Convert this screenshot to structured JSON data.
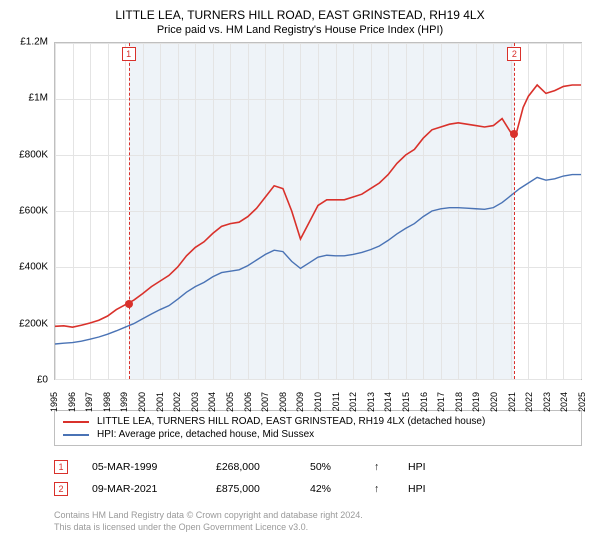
{
  "title": {
    "line1": "LITTLE LEA, TURNERS HILL ROAD, EAST GRINSTEAD, RH19 4LX",
    "line2": "Price paid vs. HM Land Registry's House Price Index (HPI)"
  },
  "chart": {
    "type": "line",
    "background_color": "#ffffff",
    "plot_border_color": "#bfbfbf",
    "grid_color": "#e4e4e4",
    "shade_color": "#eef3f8",
    "y": {
      "min": 0,
      "max": 1200000,
      "step": 200000,
      "labels": [
        "£0",
        "£200K",
        "£400K",
        "£600K",
        "£800K",
        "£1M",
        "£1.2M"
      ],
      "fontsize": 10
    },
    "x": {
      "min": 1995,
      "max": 2025,
      "step": 1,
      "labels": [
        "1995",
        "1996",
        "1997",
        "1998",
        "1999",
        "2000",
        "2001",
        "2002",
        "2003",
        "2004",
        "2005",
        "2006",
        "2007",
        "2008",
        "2009",
        "2010",
        "2011",
        "2012",
        "2013",
        "2014",
        "2015",
        "2016",
        "2017",
        "2018",
        "2019",
        "2020",
        "2021",
        "2022",
        "2023",
        "2024",
        "2025"
      ],
      "fontsize": 9,
      "rotation": -90
    },
    "shade_span": {
      "start_year": 1999.2,
      "end_year": 2021.2
    },
    "series": [
      {
        "name": "price_paid",
        "color": "#d9312b",
        "line_width": 1.6,
        "points": [
          [
            1995.0,
            188000
          ],
          [
            1995.5,
            190000
          ],
          [
            1996.0,
            185000
          ],
          [
            1996.5,
            192000
          ],
          [
            1997.0,
            200000
          ],
          [
            1997.5,
            210000
          ],
          [
            1998.0,
            225000
          ],
          [
            1998.5,
            248000
          ],
          [
            1999.0,
            265000
          ],
          [
            1999.5,
            282000
          ],
          [
            2000.0,
            305000
          ],
          [
            2000.5,
            330000
          ],
          [
            2001.0,
            350000
          ],
          [
            2001.5,
            370000
          ],
          [
            2002.0,
            400000
          ],
          [
            2002.5,
            440000
          ],
          [
            2003.0,
            470000
          ],
          [
            2003.5,
            490000
          ],
          [
            2004.0,
            520000
          ],
          [
            2004.5,
            545000
          ],
          [
            2005.0,
            555000
          ],
          [
            2005.5,
            560000
          ],
          [
            2006.0,
            580000
          ],
          [
            2006.5,
            610000
          ],
          [
            2007.0,
            650000
          ],
          [
            2007.5,
            690000
          ],
          [
            2008.0,
            680000
          ],
          [
            2008.5,
            600000
          ],
          [
            2009.0,
            500000
          ],
          [
            2009.5,
            560000
          ],
          [
            2010.0,
            620000
          ],
          [
            2010.5,
            640000
          ],
          [
            2011.0,
            640000
          ],
          [
            2011.5,
            640000
          ],
          [
            2012.0,
            650000
          ],
          [
            2012.5,
            660000
          ],
          [
            2013.0,
            680000
          ],
          [
            2013.5,
            700000
          ],
          [
            2014.0,
            730000
          ],
          [
            2014.5,
            770000
          ],
          [
            2015.0,
            800000
          ],
          [
            2015.5,
            820000
          ],
          [
            2016.0,
            860000
          ],
          [
            2016.5,
            890000
          ],
          [
            2017.0,
            900000
          ],
          [
            2017.5,
            910000
          ],
          [
            2018.0,
            915000
          ],
          [
            2018.5,
            910000
          ],
          [
            2019.0,
            905000
          ],
          [
            2019.5,
            900000
          ],
          [
            2020.0,
            905000
          ],
          [
            2020.5,
            930000
          ],
          [
            2021.0,
            880000
          ],
          [
            2021.3,
            875000
          ],
          [
            2021.7,
            970000
          ],
          [
            2022.0,
            1010000
          ],
          [
            2022.5,
            1050000
          ],
          [
            2023.0,
            1020000
          ],
          [
            2023.5,
            1030000
          ],
          [
            2024.0,
            1045000
          ],
          [
            2024.5,
            1050000
          ],
          [
            2025.0,
            1050000
          ]
        ]
      },
      {
        "name": "hpi",
        "color": "#4a73b5",
        "line_width": 1.4,
        "points": [
          [
            1995.0,
            125000
          ],
          [
            1995.5,
            128000
          ],
          [
            1996.0,
            130000
          ],
          [
            1996.5,
            135000
          ],
          [
            1997.0,
            142000
          ],
          [
            1997.5,
            150000
          ],
          [
            1998.0,
            160000
          ],
          [
            1998.5,
            172000
          ],
          [
            1999.0,
            185000
          ],
          [
            1999.5,
            198000
          ],
          [
            2000.0,
            215000
          ],
          [
            2000.5,
            232000
          ],
          [
            2001.0,
            248000
          ],
          [
            2001.5,
            262000
          ],
          [
            2002.0,
            285000
          ],
          [
            2002.5,
            310000
          ],
          [
            2003.0,
            330000
          ],
          [
            2003.5,
            345000
          ],
          [
            2004.0,
            365000
          ],
          [
            2004.5,
            380000
          ],
          [
            2005.0,
            385000
          ],
          [
            2005.5,
            390000
          ],
          [
            2006.0,
            405000
          ],
          [
            2006.5,
            425000
          ],
          [
            2007.0,
            445000
          ],
          [
            2007.5,
            460000
          ],
          [
            2008.0,
            455000
          ],
          [
            2008.5,
            420000
          ],
          [
            2009.0,
            395000
          ],
          [
            2009.5,
            415000
          ],
          [
            2010.0,
            435000
          ],
          [
            2010.5,
            442000
          ],
          [
            2011.0,
            440000
          ],
          [
            2011.5,
            440000
          ],
          [
            2012.0,
            445000
          ],
          [
            2012.5,
            452000
          ],
          [
            2013.0,
            462000
          ],
          [
            2013.5,
            475000
          ],
          [
            2014.0,
            495000
          ],
          [
            2014.5,
            518000
          ],
          [
            2015.0,
            538000
          ],
          [
            2015.5,
            555000
          ],
          [
            2016.0,
            580000
          ],
          [
            2016.5,
            600000
          ],
          [
            2017.0,
            608000
          ],
          [
            2017.5,
            612000
          ],
          [
            2018.0,
            612000
          ],
          [
            2018.5,
            610000
          ],
          [
            2019.0,
            608000
          ],
          [
            2019.5,
            606000
          ],
          [
            2020.0,
            612000
          ],
          [
            2020.5,
            630000
          ],
          [
            2021.0,
            655000
          ],
          [
            2021.5,
            680000
          ],
          [
            2022.0,
            700000
          ],
          [
            2022.5,
            720000
          ],
          [
            2023.0,
            710000
          ],
          [
            2023.5,
            715000
          ],
          [
            2024.0,
            725000
          ],
          [
            2024.5,
            730000
          ],
          [
            2025.0,
            730000
          ]
        ]
      }
    ],
    "event_markers": [
      {
        "n": "1",
        "year": 1999.2,
        "value": 268000,
        "dash_color": "#d9312b"
      },
      {
        "n": "2",
        "year": 2021.2,
        "value": 875000,
        "dash_color": "#d9312b"
      }
    ]
  },
  "legend": {
    "border_color": "#bfbfbf",
    "items": [
      {
        "color": "#d9312b",
        "label": "LITTLE LEA, TURNERS HILL ROAD, EAST GRINSTEAD, RH19 4LX (detached house)"
      },
      {
        "color": "#4a73b5",
        "label": "HPI: Average price, detached house, Mid Sussex"
      }
    ]
  },
  "events": [
    {
      "n": "1",
      "date": "05-MAR-1999",
      "price": "£268,000",
      "pct": "50%",
      "arrow": "↑",
      "ref": "HPI"
    },
    {
      "n": "2",
      "date": "09-MAR-2021",
      "price": "£875,000",
      "pct": "42%",
      "arrow": "↑",
      "ref": "HPI"
    }
  ],
  "footer": {
    "line1": "Contains HM Land Registry data © Crown copyright and database right 2024.",
    "line2": "This data is licensed under the Open Government Licence v3.0."
  }
}
